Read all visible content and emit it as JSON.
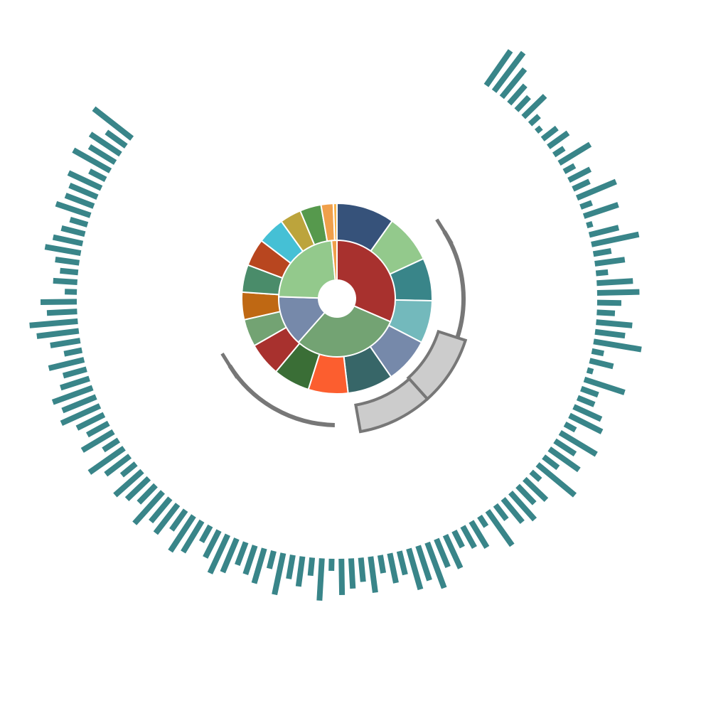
{
  "chart_data": {
    "type": "sunburst",
    "title": "",
    "inner_ring": {
      "segments": [
        {
          "value": 31.5,
          "color": "#a8312e"
        },
        {
          "value": 30.0,
          "color": "#73a373"
        },
        {
          "value": 14.0,
          "color": "#7689aa"
        },
        {
          "value": 23.0,
          "color": "#93c98c"
        },
        {
          "value": 1.5,
          "color": "#f0a04b"
        }
      ]
    },
    "outer_ring": {
      "segments": [
        {
          "value": 9.5,
          "color": "#36527a"
        },
        {
          "value": 8.0,
          "color": "#93c98c"
        },
        {
          "value": 7.0,
          "color": "#398589"
        },
        {
          "value": 7.0,
          "color": "#73b9bc"
        },
        {
          "value": 7.5,
          "color": "#7689aa"
        },
        {
          "value": 7.5,
          "color": "#376668"
        },
        {
          "value": 6.5,
          "color": "#fc5e2f"
        },
        {
          "value": 6.0,
          "color": "#3a6e36"
        },
        {
          "value": 5.5,
          "color": "#a8312e"
        },
        {
          "value": 4.5,
          "color": "#73a373"
        },
        {
          "value": 4.5,
          "color": "#bf6813"
        },
        {
          "value": 4.5,
          "color": "#4a8c6a"
        },
        {
          "value": 4.5,
          "color": "#b8461f"
        },
        {
          "value": 4.5,
          "color": "#45c0d5"
        },
        {
          "value": 3.5,
          "color": "#bca43c"
        },
        {
          "value": 3.5,
          "color": "#56994d"
        },
        {
          "value": 2.0,
          "color": "#f0a04b"
        },
        {
          "value": 0.6,
          "color": "#f7b24c"
        }
      ]
    },
    "radial_bars": {
      "color": "#398589",
      "start_angle_deg": 35,
      "end_angle_deg": 308,
      "values": [
        7,
        8,
        6,
        4,
        3,
        5,
        2,
        1,
        3,
        4,
        2,
        6,
        2,
        4,
        3,
        7,
        2,
        6,
        1,
        5,
        8,
        3,
        5,
        2,
        6,
        7,
        4,
        3,
        6,
        5,
        8,
        2,
        4,
        1,
        7,
        3,
        3,
        5,
        6,
        2,
        7,
        4,
        6,
        3,
        8,
        2,
        5,
        4,
        6,
        5,
        3,
        7,
        2,
        5,
        4,
        3,
        6,
        5,
        8,
        6,
        7,
        4,
        5,
        3,
        6,
        4,
        5,
        6,
        2,
        7,
        3,
        5,
        4,
        7,
        3,
        6,
        5,
        4,
        6,
        7,
        5,
        3,
        6,
        7,
        4,
        6,
        5,
        7,
        4,
        5,
        6,
        3,
        5,
        7,
        3,
        6,
        4,
        5,
        7,
        6,
        7,
        5,
        4,
        6,
        3,
        5,
        7,
        8,
        5,
        6,
        2,
        4,
        3,
        4,
        6,
        5,
        4,
        3,
        6,
        5,
        5,
        6,
        3,
        7,
        5,
        6,
        4,
        8
      ]
    },
    "decorations": {
      "gauge_arc_color": "#777777",
      "gauge_band_fill": "#cccccc"
    }
  }
}
